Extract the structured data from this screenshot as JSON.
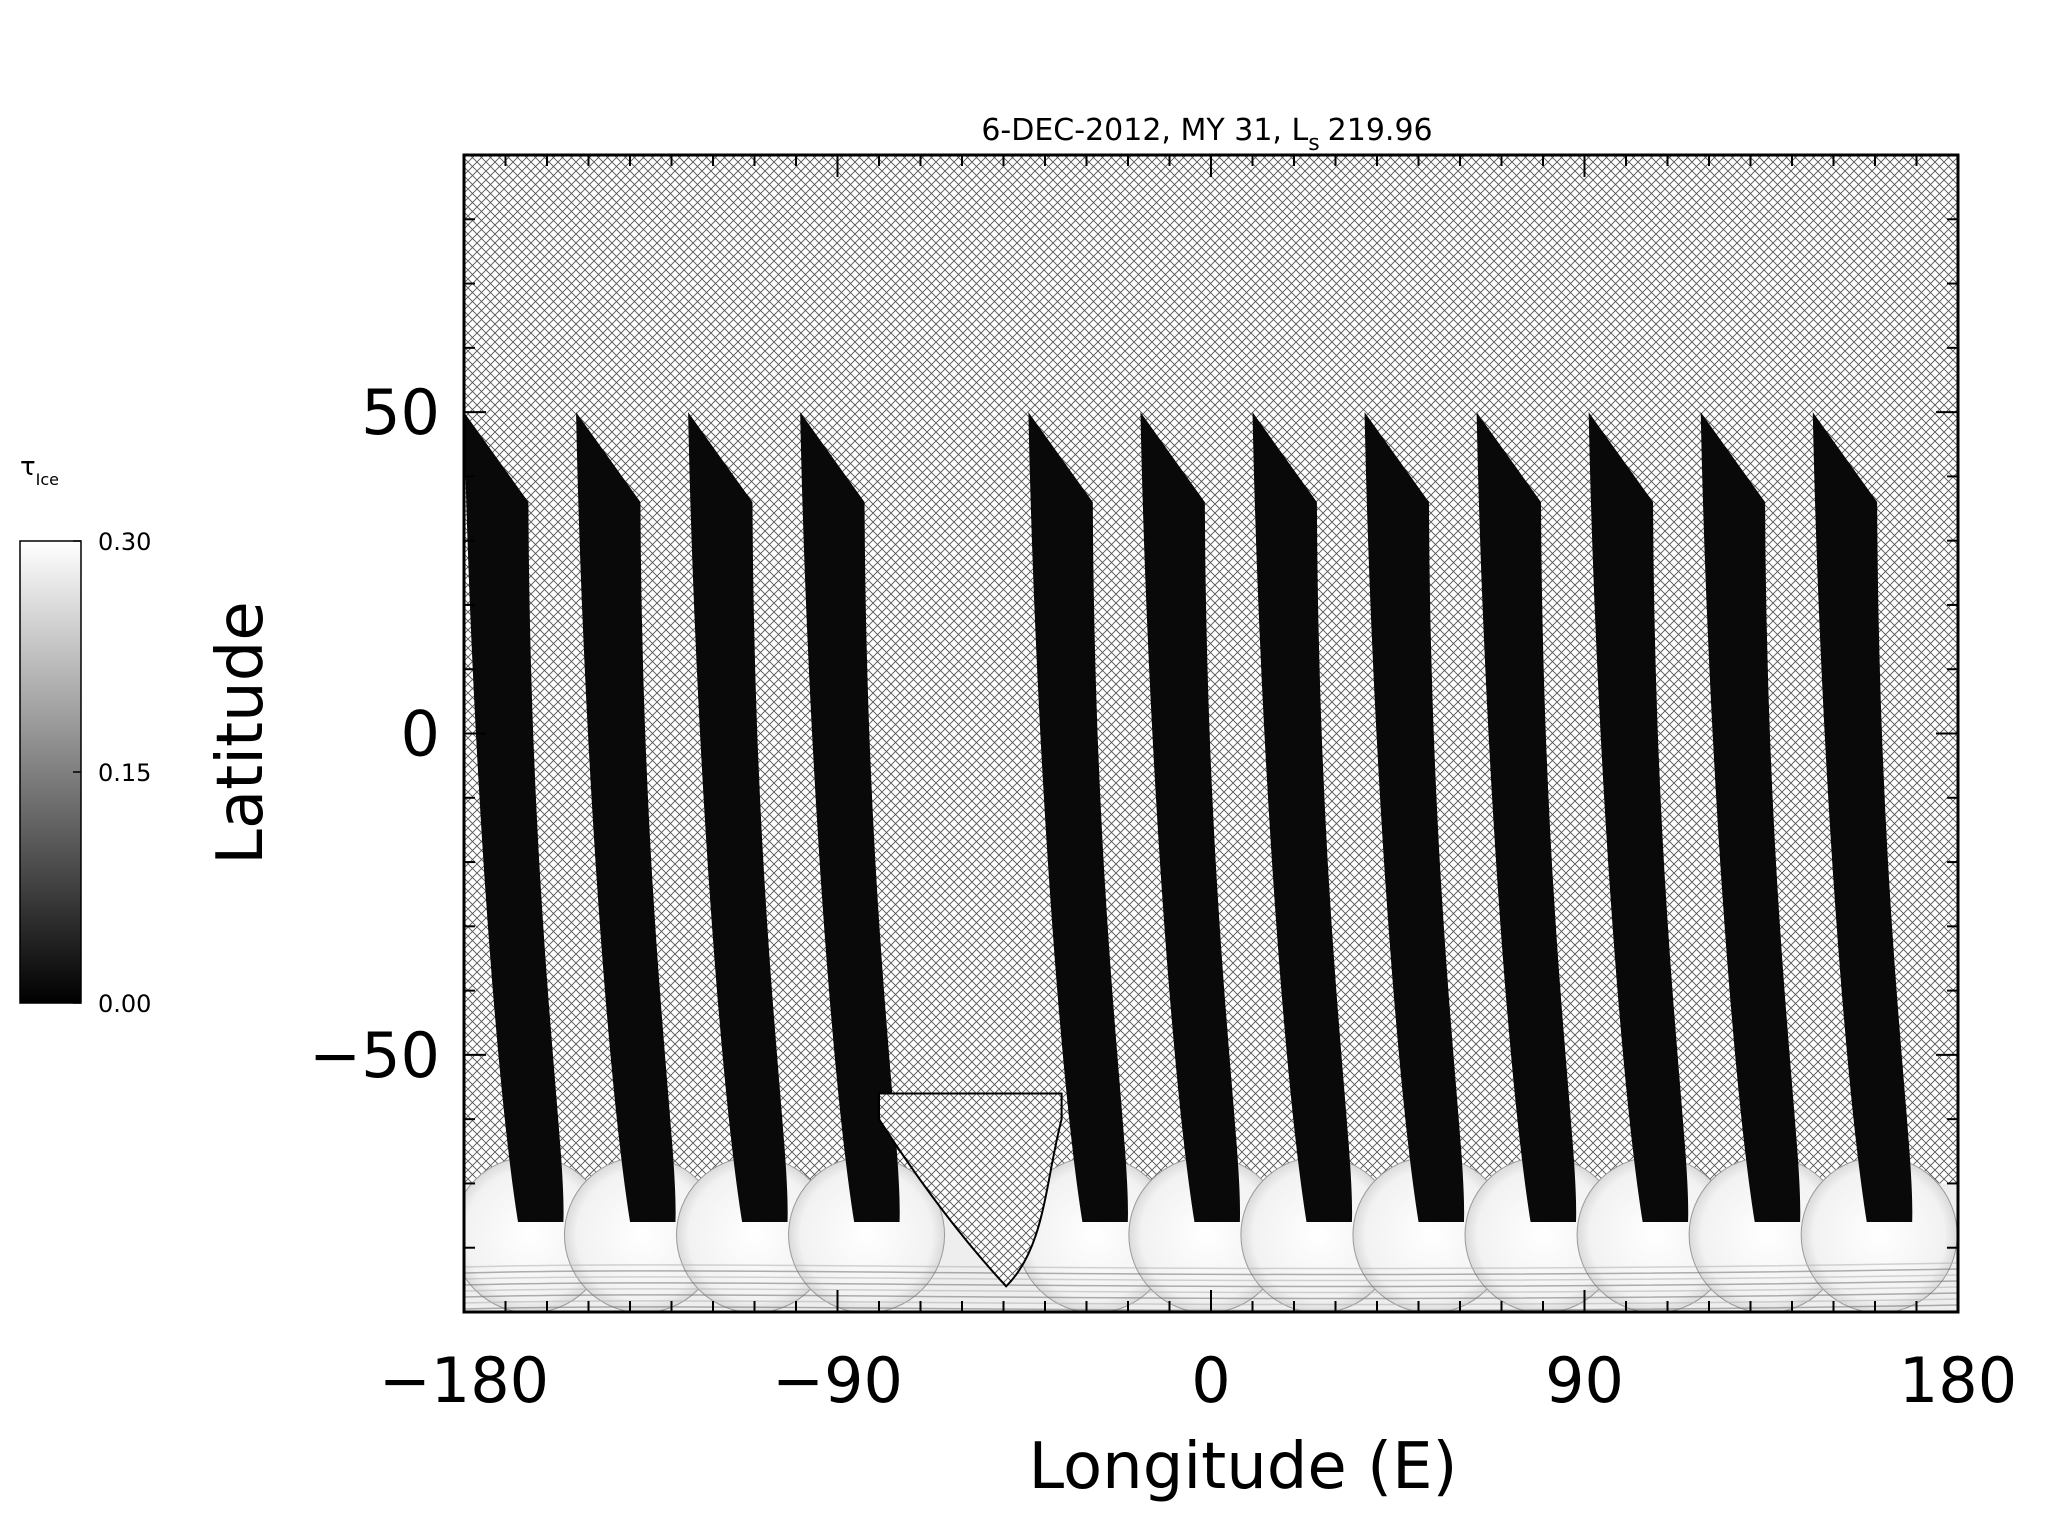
{
  "chart_data": {
    "type": "heatmap",
    "title": "6-DEC-2012, MY 31,  L",
    "title_subscript": "s",
    "title_value": "219.96",
    "xlabel": "Longitude (E)",
    "ylabel": "Latitude",
    "xlim": [
      -180,
      180
    ],
    "ylim": [
      -90,
      90
    ],
    "xticks": [
      -180,
      -90,
      0,
      90,
      180
    ],
    "xtick_labels": [
      "−180",
      "−90",
      "0",
      "90",
      "180"
    ],
    "yticks": [
      -50,
      0,
      50
    ],
    "ytick_labels": [
      "−50",
      "0",
      "50"
    ],
    "x_minor_step": 10,
    "y_minor_step": 10,
    "no_data_fill": "crosshatch",
    "colorbar": {
      "label": "τ",
      "label_subscript": "Ice",
      "range": [
        0.0,
        0.3
      ],
      "tick_values": [
        0.0,
        0.15,
        0.3
      ],
      "tick_labels": [
        "0.00",
        "0.15",
        "0.30"
      ],
      "colormap": [
        "#000000",
        "#ffffff"
      ]
    },
    "swath_centers_lon": [
      -172,
      -145,
      -118,
      -91,
      -36,
      -9,
      18,
      45,
      72,
      99,
      126,
      153
    ],
    "swath_width_deg": 16,
    "swath_lat_top": 50,
    "swath_lat_bottom": -76,
    "south_ice_band_lat": [
      -90,
      -70
    ],
    "values_ice_swath": 0.01,
    "values_south_band": 0.28
  }
}
